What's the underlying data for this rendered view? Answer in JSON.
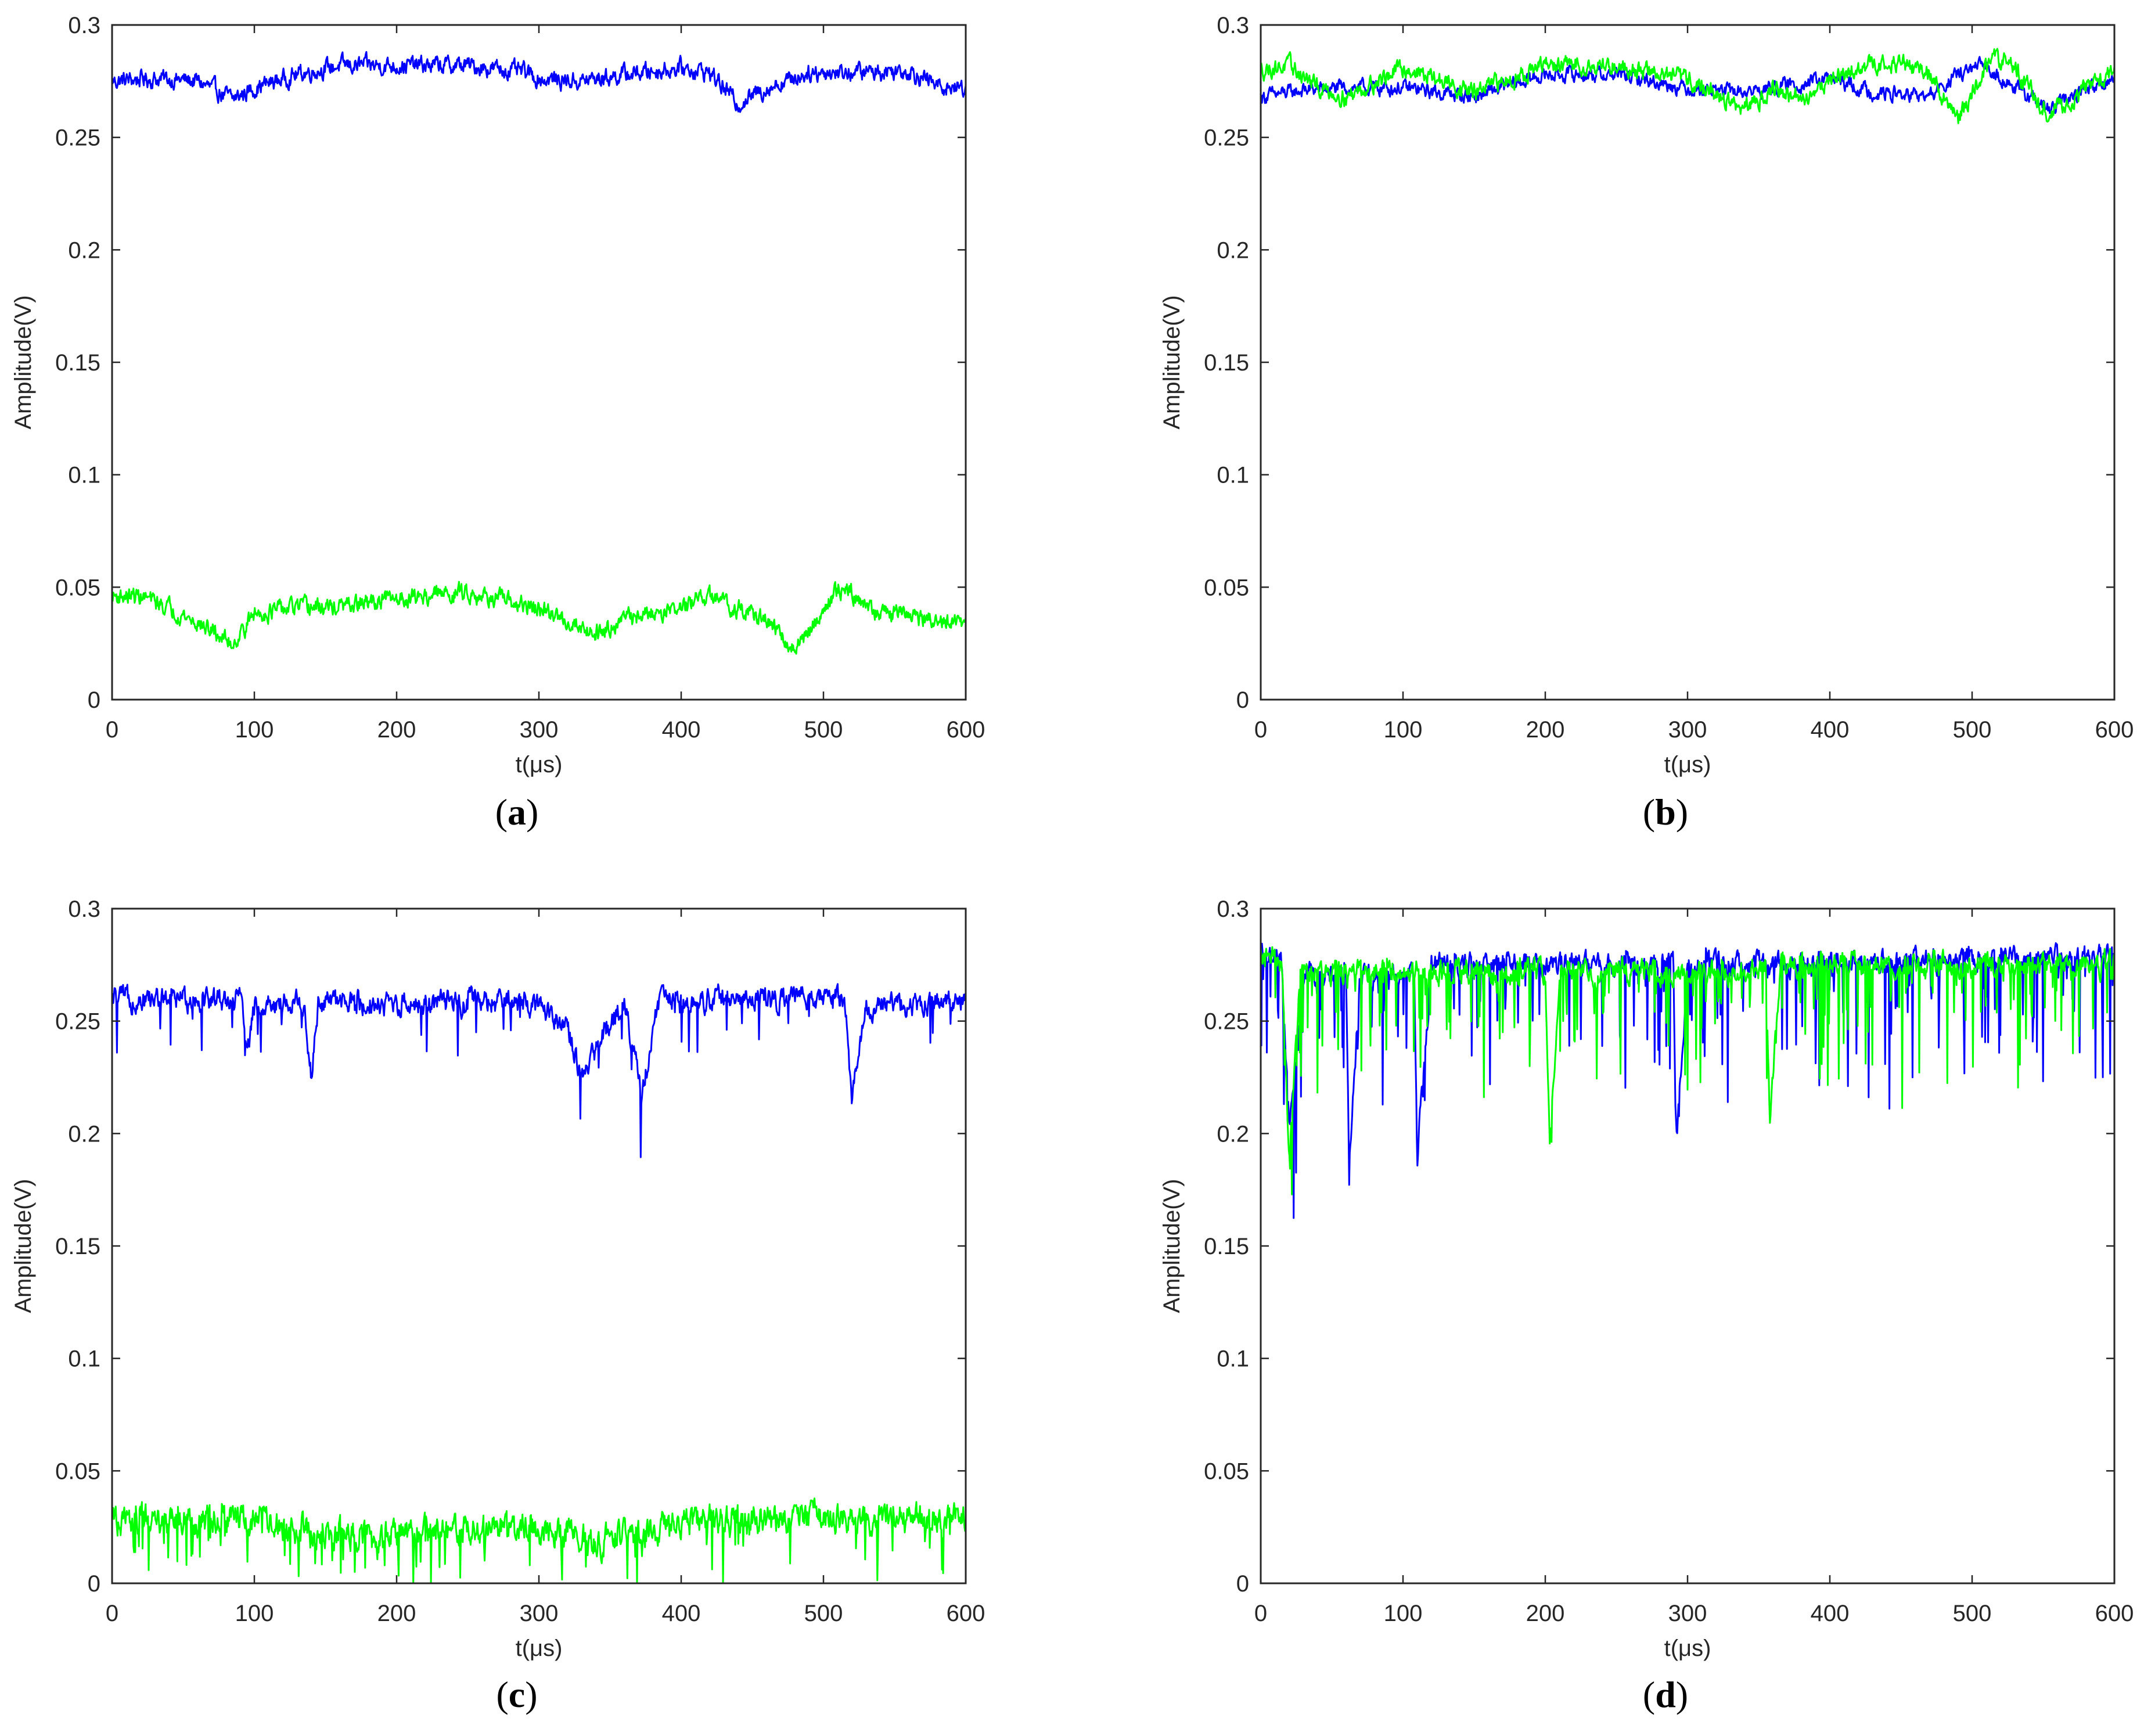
{
  "figure_colors": {
    "series_1": "#0000ff",
    "series_2": "#00ff00",
    "axes": "#262626"
  },
  "chart_data": [
    {
      "id": "a",
      "type": "line",
      "panel_label": {
        "open": "(",
        "letter": "a",
        "close": ")"
      },
      "xlabel": "t(μs)",
      "ylabel": "Amplitude(V)",
      "xlim": [
        0,
        600
      ],
      "ylim": [
        0,
        0.3
      ],
      "xticks": [
        0,
        100,
        200,
        300,
        400,
        500,
        600
      ],
      "xtick_labels": [
        "0",
        "100",
        "200",
        "300",
        "400",
        "500",
        "600"
      ],
      "yticks": [
        0,
        0.05,
        0.1,
        0.15,
        0.2,
        0.25,
        0.3
      ],
      "ytick_labels": [
        "0",
        "0.05",
        "0.1",
        "0.15",
        "0.2",
        "0.25",
        "0.3"
      ],
      "series": [
        {
          "name": "blue",
          "color": "#0000ff",
          "x": [
            0,
            20,
            40,
            60,
            85,
            100,
            130,
            160,
            200,
            250,
            290,
            300,
            330,
            360,
            400,
            420,
            440,
            460,
            490,
            520,
            560,
            580,
            600
          ],
          "values": [
            0.275,
            0.276,
            0.276,
            0.275,
            0.267,
            0.272,
            0.278,
            0.282,
            0.282,
            0.282,
            0.279,
            0.276,
            0.275,
            0.278,
            0.281,
            0.279,
            0.265,
            0.272,
            0.279,
            0.279,
            0.28,
            0.273,
            0.272
          ],
          "noise": 0.003,
          "spike_rate": 0,
          "spike_depth": 0
        },
        {
          "name": "green",
          "color": "#00ff00",
          "x": [
            0,
            20,
            40,
            60,
            85,
            100,
            130,
            160,
            200,
            250,
            300,
            340,
            360,
            400,
            420,
            460,
            480,
            500,
            510,
            520,
            540,
            560,
            580,
            600
          ],
          "values": [
            0.046,
            0.046,
            0.041,
            0.034,
            0.025,
            0.038,
            0.041,
            0.041,
            0.045,
            0.048,
            0.04,
            0.03,
            0.036,
            0.041,
            0.046,
            0.035,
            0.022,
            0.04,
            0.05,
            0.047,
            0.038,
            0.038,
            0.034,
            0.034
          ],
          "noise": 0.003,
          "spike_rate": 0,
          "spike_depth": 0
        }
      ]
    },
    {
      "id": "b",
      "type": "line",
      "panel_label": {
        "open": "(",
        "letter": "b",
        "close": ")"
      },
      "xlabel": "t(μs)",
      "ylabel": "Amplitude(V)",
      "xlim": [
        0,
        600
      ],
      "ylim": [
        0,
        0.3
      ],
      "xticks": [
        0,
        100,
        200,
        300,
        400,
        500,
        600
      ],
      "xtick_labels": [
        "0",
        "100",
        "200",
        "300",
        "400",
        "500",
        "600"
      ],
      "yticks": [
        0,
        0.05,
        0.1,
        0.15,
        0.2,
        0.25,
        0.3
      ],
      "ytick_labels": [
        "0",
        "0.05",
        "0.1",
        "0.15",
        "0.2",
        "0.25",
        "0.3"
      ],
      "series": [
        {
          "name": "blue",
          "color": "#0000ff",
          "x": [
            0,
            30,
            60,
            100,
            150,
            200,
            250,
            300,
            340,
            360,
            400,
            430,
            470,
            490,
            510,
            530,
            555,
            580,
            600
          ],
          "values": [
            0.268,
            0.271,
            0.272,
            0.272,
            0.268,
            0.278,
            0.278,
            0.272,
            0.27,
            0.272,
            0.276,
            0.27,
            0.268,
            0.278,
            0.282,
            0.272,
            0.262,
            0.272,
            0.276
          ],
          "noise": 0.0025,
          "spike_rate": 0,
          "spike_depth": 0
        },
        {
          "name": "green",
          "color": "#00ff00",
          "x": [
            0,
            20,
            40,
            60,
            100,
            150,
            200,
            250,
            300,
            340,
            360,
            380,
            400,
            440,
            470,
            490,
            515,
            530,
            555,
            580,
            600
          ],
          "values": [
            0.28,
            0.282,
            0.272,
            0.268,
            0.281,
            0.27,
            0.282,
            0.282,
            0.276,
            0.262,
            0.272,
            0.266,
            0.276,
            0.284,
            0.279,
            0.258,
            0.286,
            0.281,
            0.26,
            0.272,
            0.28
          ],
          "noise": 0.003,
          "spike_rate": 0,
          "spike_depth": 0
        }
      ]
    },
    {
      "id": "c",
      "type": "line",
      "panel_label": {
        "open": "(",
        "letter": "c",
        "close": ")"
      },
      "xlabel": "t(μs)",
      "ylabel": "Amplitude(V)",
      "xlim": [
        0,
        600
      ],
      "ylim": [
        0,
        0.3
      ],
      "xticks": [
        0,
        100,
        200,
        300,
        400,
        500,
        600
      ],
      "xtick_labels": [
        "0",
        "100",
        "200",
        "300",
        "400",
        "500",
        "600"
      ],
      "yticks": [
        0,
        0.05,
        0.1,
        0.15,
        0.2,
        0.25,
        0.3
      ],
      "ytick_labels": [
        "0",
        "0.05",
        "0.1",
        "0.15",
        "0.2",
        "0.25",
        "0.3"
      ],
      "series": [
        {
          "name": "blue",
          "color": "#0000ff",
          "x": [
            0,
            90,
            95,
            100,
            135,
            140,
            145,
            300,
            320,
            330,
            345,
            360,
            372,
            385,
            515,
            520,
            530,
            600
          ],
          "values": [
            0.26,
            0.26,
            0.235,
            0.258,
            0.258,
            0.225,
            0.258,
            0.258,
            0.248,
            0.222,
            0.245,
            0.258,
            0.218,
            0.26,
            0.26,
            0.215,
            0.256,
            0.26
          ],
          "noise": 0.004,
          "spike_rate": 0.04,
          "spike_depth": 0.02
        },
        {
          "name": "green",
          "color": "#00ff00",
          "x": [
            0,
            100,
            150,
            200,
            250,
            300,
            340,
            380,
            400,
            450,
            500,
            600
          ],
          "values": [
            0.028,
            0.028,
            0.022,
            0.022,
            0.024,
            0.024,
            0.018,
            0.024,
            0.028,
            0.028,
            0.029,
            0.028
          ],
          "noise": 0.005,
          "spike_rate": 0.08,
          "spike_depth": 0.022
        }
      ]
    },
    {
      "id": "d",
      "type": "line",
      "panel_label": {
        "open": "(",
        "letter": "d",
        "close": ")"
      },
      "xlabel": "t(μs)",
      "ylabel": "Amplitude(V)",
      "xlim": [
        0,
        600
      ],
      "ylim": [
        0,
        0.3
      ],
      "xticks": [
        0,
        100,
        200,
        300,
        400,
        500,
        600
      ],
      "xtick_labels": [
        "0",
        "100",
        "200",
        "300",
        "400",
        "500",
        "600"
      ],
      "yticks": [
        0,
        0.05,
        0.1,
        0.15,
        0.2,
        0.25,
        0.3
      ],
      "ytick_labels": [
        "0",
        "0.05",
        "0.1",
        "0.15",
        "0.2",
        "0.25",
        "0.3"
      ],
      "series": [
        {
          "name": "blue",
          "color": "#0000ff",
          "x": [
            0,
            15,
            20,
            30,
            60,
            62,
            70,
            108,
            110,
            120,
            290,
            292,
            300,
            600
          ],
          "values": [
            0.28,
            0.275,
            0.2,
            0.27,
            0.27,
            0.185,
            0.27,
            0.27,
            0.19,
            0.275,
            0.275,
            0.195,
            0.275,
            0.278
          ],
          "noise": 0.004,
          "spike_rate": 0.12,
          "spike_depth": 0.045
        },
        {
          "name": "green",
          "color": "#00ff00",
          "x": [
            0,
            15,
            20,
            28,
            200,
            203,
            210,
            355,
            358,
            365,
            600
          ],
          "values": [
            0.28,
            0.275,
            0.19,
            0.272,
            0.272,
            0.195,
            0.272,
            0.272,
            0.205,
            0.275,
            0.275
          ],
          "noise": 0.004,
          "spike_rate": 0.12,
          "spike_depth": 0.04
        }
      ]
    }
  ]
}
